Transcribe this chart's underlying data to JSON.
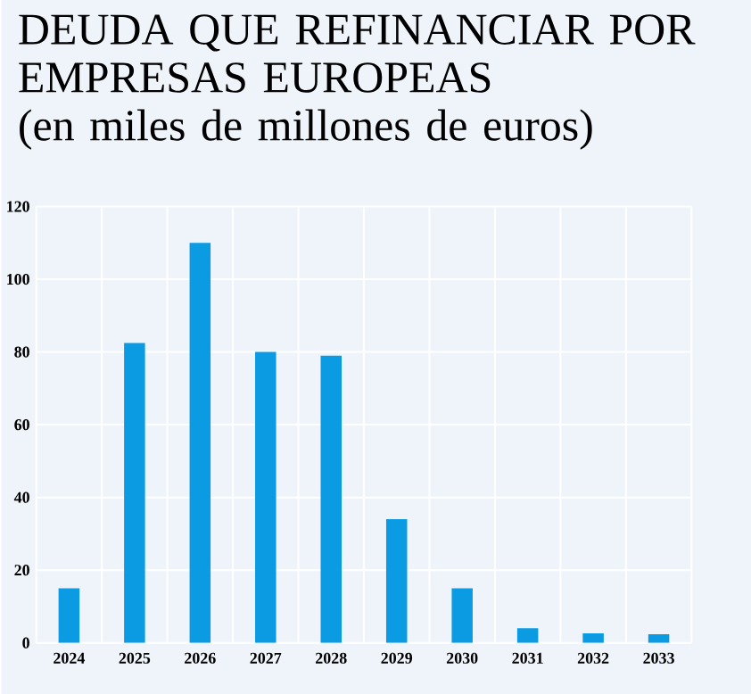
{
  "chart_data": {
    "type": "bar",
    "title": "DEUDA QUE REFINANCIAR POR EMPRESAS EUROPEAS",
    "subtitle": "(en miles de millones de euros)",
    "categories": [
      "2024",
      "2025",
      "2026",
      "2027",
      "2028",
      "2029",
      "2030",
      "2031",
      "2032",
      "2033"
    ],
    "values": [
      15,
      82.5,
      110,
      80,
      79,
      34,
      15,
      4,
      2.6,
      2.4
    ],
    "color": "#0a9be3",
    "ylim": [
      0,
      120
    ],
    "yticks": [
      0,
      20,
      40,
      60,
      80,
      100,
      120
    ],
    "grid": true
  }
}
